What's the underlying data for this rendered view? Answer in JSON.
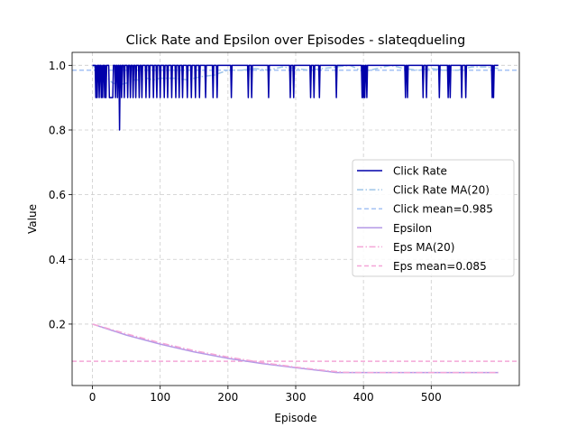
{
  "chart_data": {
    "type": "line",
    "title": "Click Rate and Epsilon over Episodes - slateqdueling",
    "xlabel": "Episode",
    "ylabel": "Value",
    "xlim": [
      -30,
      630
    ],
    "ylim": [
      0.01,
      1.04
    ],
    "xticks": [
      0,
      100,
      200,
      300,
      400,
      500
    ],
    "yticks": [
      0.2,
      0.4,
      0.6,
      0.8,
      1.0
    ],
    "xtick_labels": [
      "0",
      "100",
      "200",
      "300",
      "400",
      "500"
    ],
    "ytick_labels": [
      "0.2",
      "0.4",
      "0.6",
      "0.8",
      "1.0"
    ],
    "grid": true,
    "legend_position": "center-right",
    "episodes": {
      "start": 0,
      "end": 599
    },
    "series": [
      {
        "name": "Click Rate",
        "style": "solid",
        "color": "#0000aa",
        "base_value": 1.0,
        "dips": [
          [
            5,
            0.9
          ],
          [
            7,
            0.9
          ],
          [
            10,
            0.9
          ],
          [
            13,
            0.9
          ],
          [
            15,
            0.9
          ],
          [
            18,
            0.9
          ],
          [
            20,
            0.9
          ],
          [
            25,
            0.9
          ],
          [
            26,
            0.9
          ],
          [
            27,
            0.9
          ],
          [
            28,
            0.9
          ],
          [
            29,
            0.9
          ],
          [
            30,
            0.9
          ],
          [
            34,
            0.9
          ],
          [
            37,
            0.9
          ],
          [
            40,
            0.8
          ],
          [
            43,
            0.9
          ],
          [
            47,
            0.9
          ],
          [
            52,
            0.9
          ],
          [
            56,
            0.9
          ],
          [
            60,
            0.9
          ],
          [
            64,
            0.9
          ],
          [
            69,
            0.9
          ],
          [
            73,
            0.9
          ],
          [
            79,
            0.9
          ],
          [
            84,
            0.9
          ],
          [
            90,
            0.9
          ],
          [
            95,
            0.9
          ],
          [
            100,
            0.9
          ],
          [
            106,
            0.9
          ],
          [
            111,
            0.9
          ],
          [
            117,
            0.9
          ],
          [
            123,
            0.9
          ],
          [
            128,
            0.9
          ],
          [
            133,
            0.9
          ],
          [
            140,
            0.9
          ],
          [
            146,
            0.9
          ],
          [
            152,
            0.9
          ],
          [
            158,
            0.9
          ],
          [
            167,
            0.9
          ],
          [
            178,
            0.9
          ],
          [
            184,
            0.9
          ],
          [
            205,
            0.9
          ],
          [
            230,
            0.9
          ],
          [
            235,
            0.9
          ],
          [
            260,
            0.9
          ],
          [
            292,
            0.9
          ],
          [
            297,
            0.9
          ],
          [
            322,
            0.9
          ],
          [
            327,
            0.9
          ],
          [
            335,
            0.9
          ],
          [
            360,
            0.9
          ],
          [
            398,
            0.9
          ],
          [
            400,
            0.9
          ],
          [
            402,
            0.9
          ],
          [
            405,
            0.9
          ],
          [
            462,
            0.9
          ],
          [
            465,
            0.9
          ],
          [
            488,
            0.9
          ],
          [
            493,
            0.9
          ],
          [
            512,
            0.9
          ],
          [
            525,
            0.9
          ],
          [
            528,
            0.9
          ],
          [
            545,
            0.9
          ],
          [
            551,
            0.9
          ],
          [
            590,
            0.9
          ],
          [
            592,
            0.9
          ]
        ]
      },
      {
        "name": "Click Rate MA(20)",
        "style": "dashdot",
        "color": "#9fc5e8",
        "points": [
          [
            0,
            1.0
          ],
          [
            10,
            0.985
          ],
          [
            20,
            0.965
          ],
          [
            30,
            0.945
          ],
          [
            40,
            0.94
          ],
          [
            50,
            0.945
          ],
          [
            60,
            0.955
          ],
          [
            70,
            0.955
          ],
          [
            80,
            0.96
          ],
          [
            90,
            0.955
          ],
          [
            100,
            0.96
          ],
          [
            120,
            0.96
          ],
          [
            140,
            0.955
          ],
          [
            160,
            0.965
          ],
          [
            180,
            0.97
          ],
          [
            200,
            0.985
          ],
          [
            220,
            0.985
          ],
          [
            240,
            0.99
          ],
          [
            260,
            0.985
          ],
          [
            280,
            0.995
          ],
          [
            300,
            0.99
          ],
          [
            320,
            0.985
          ],
          [
            340,
            0.99
          ],
          [
            360,
            0.995
          ],
          [
            380,
            1.0
          ],
          [
            400,
            0.98
          ],
          [
            420,
            0.99
          ],
          [
            440,
            1.0
          ],
          [
            460,
            0.99
          ],
          [
            480,
            0.985
          ],
          [
            500,
            0.99
          ],
          [
            520,
            0.985
          ],
          [
            540,
            0.985
          ],
          [
            560,
            0.995
          ],
          [
            580,
            0.995
          ],
          [
            599,
            0.99
          ]
        ]
      },
      {
        "name": "Click mean=0.985",
        "style": "dashed",
        "color": "#a4c2f4",
        "value": 0.985
      },
      {
        "name": "Epsilon",
        "style": "solid",
        "color": "#b499e6",
        "points": [
          [
            0,
            0.2
          ],
          [
            50,
            0.166
          ],
          [
            100,
            0.138
          ],
          [
            150,
            0.114
          ],
          [
            200,
            0.094
          ],
          [
            250,
            0.078
          ],
          [
            300,
            0.065
          ],
          [
            350,
            0.053
          ],
          [
            360,
            0.05
          ],
          [
            400,
            0.05
          ],
          [
            500,
            0.05
          ],
          [
            599,
            0.05
          ]
        ]
      },
      {
        "name": "Eps MA(20)",
        "style": "dashdot",
        "color": "#f4a6d7",
        "points": [
          [
            0,
            0.2
          ],
          [
            50,
            0.17
          ],
          [
            100,
            0.142
          ],
          [
            150,
            0.118
          ],
          [
            200,
            0.098
          ],
          [
            250,
            0.081
          ],
          [
            300,
            0.067
          ],
          [
            350,
            0.055
          ],
          [
            370,
            0.051
          ],
          [
            400,
            0.05
          ],
          [
            500,
            0.05
          ],
          [
            599,
            0.05
          ]
        ]
      },
      {
        "name": "Eps mean=0.085",
        "style": "dashed",
        "color": "#f4a6d7",
        "value": 0.085
      }
    ]
  }
}
